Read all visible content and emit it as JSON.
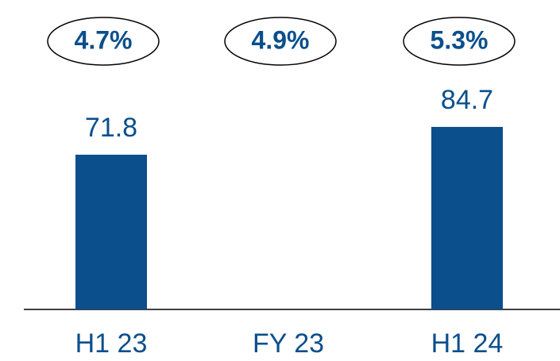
{
  "chart_data": {
    "type": "bar",
    "categories": [
      "H1 23",
      "FY 23",
      "H1 24"
    ],
    "values": [
      71.8,
      null,
      84.7
    ],
    "annotations": [
      "4.7%",
      "4.9%",
      "5.3%"
    ],
    "color": "#0b4f8c",
    "ylim": [
      0,
      100
    ]
  }
}
